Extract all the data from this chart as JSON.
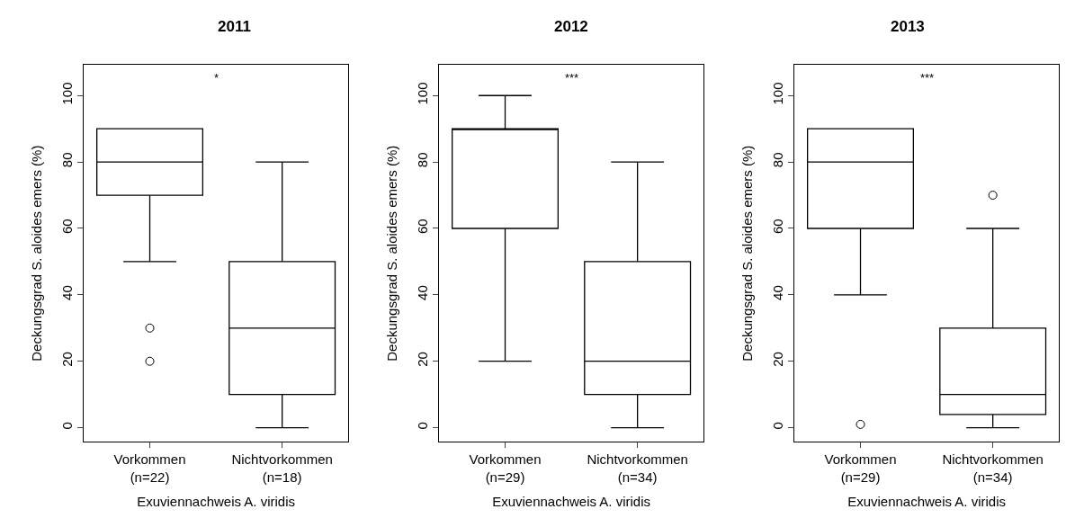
{
  "chart_data": [
    {
      "type": "box",
      "title": "2011",
      "xlabel": "Exuviennachweis A. viridis",
      "ylabel": "Deckungsgrad S. aloides emers (%)",
      "categories": [
        "Vorkommen\n(n=22)",
        "Nichtvorkommen\n(n=18)"
      ],
      "boxes": [
        {
          "low": 50,
          "q1": 70,
          "median": 80,
          "q3": 90,
          "high": 90,
          "outliers": [
            30,
            20
          ]
        },
        {
          "low": 0,
          "q1": 10,
          "median": 30,
          "q3": 50,
          "high": 80
        }
      ],
      "ylim": [
        -4.2,
        109.2
      ],
      "yticks": [
        0,
        20,
        40,
        60,
        80,
        100
      ],
      "annotations": [
        "*"
      ]
    },
    {
      "type": "box",
      "title": "2012",
      "xlabel": "Exuviennachweis A. viridis",
      "ylabel": "Deckungsgrad S. aloides emers (%)",
      "categories": [
        "Vorkommen\n(n=29)",
        "Nichtvorkommen\n(n=34)"
      ],
      "boxes": [
        {
          "low": 20,
          "q1": 60,
          "median": 90,
          "q3": 90,
          "high": 100
        },
        {
          "low": 0,
          "q1": 10,
          "median": 20,
          "q3": 50,
          "high": 80
        }
      ],
      "ylim": [
        -4.2,
        109.2
      ],
      "yticks": [
        0,
        20,
        40,
        60,
        80,
        100
      ],
      "annotations": [
        "***"
      ]
    },
    {
      "type": "box",
      "title": "2013",
      "xlabel": "Exuviennachweis A. viridis",
      "ylabel": "Deckungsgrad S. aloides emers (%)",
      "categories": [
        "Vorkommen\n(n=29)",
        "Nichtvorkommen\n(n=34)"
      ],
      "boxes": [
        {
          "low": 40,
          "q1": 60,
          "median": 80,
          "q3": 90,
          "high": 90,
          "outliers": [
            1
          ]
        },
        {
          "low": 0,
          "q1": 4,
          "median": 10,
          "q3": 30,
          "high": 60,
          "outliers": [
            70
          ]
        }
      ],
      "ylim": [
        -4.2,
        109.2
      ],
      "yticks": [
        0,
        20,
        40,
        60,
        80,
        100
      ],
      "annotations": [
        "***"
      ]
    }
  ]
}
